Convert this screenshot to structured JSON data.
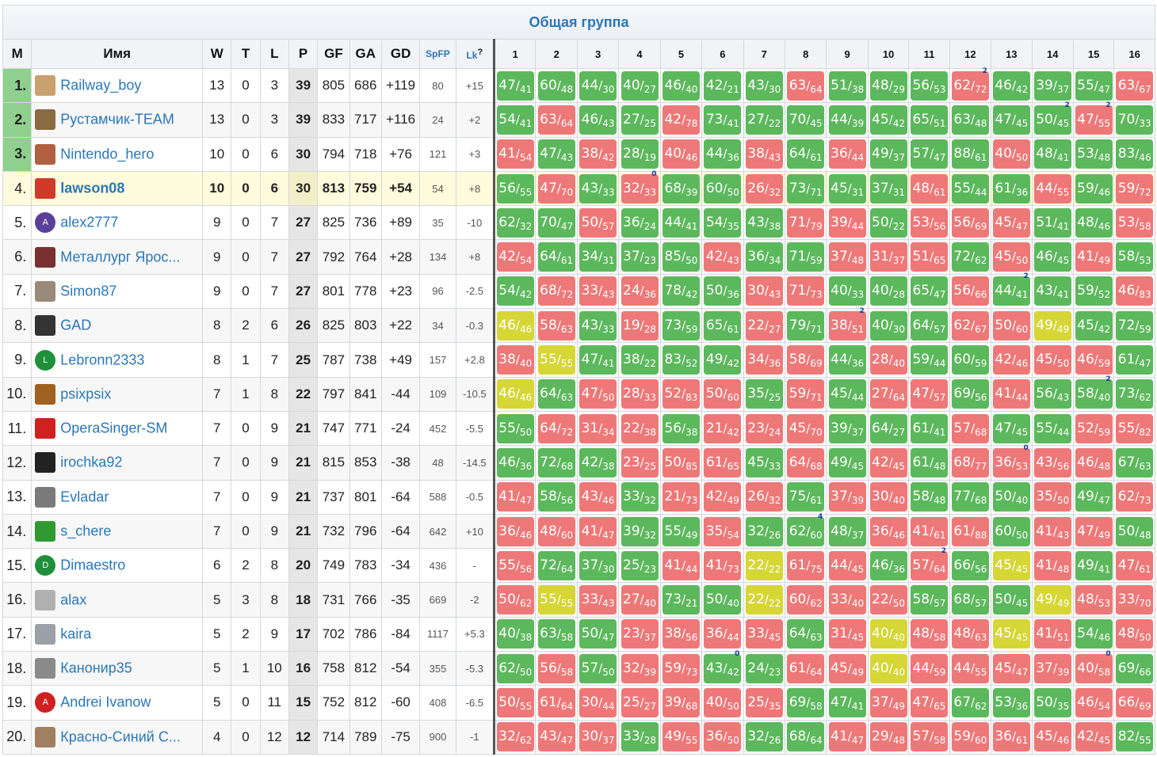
{
  "title": "Общая группа",
  "headers": {
    "m": "М",
    "name": "Имя",
    "w": "W",
    "t": "T",
    "l": "L",
    "p": "P",
    "gf": "GF",
    "ga": "GA",
    "gd": "GD",
    "spfp": "SpFP",
    "lk": "Lk",
    "lk_help": "?",
    "rounds": [
      "1",
      "2",
      "3",
      "4",
      "5",
      "6",
      "7",
      "8",
      "9",
      "10",
      "11",
      "12",
      "13",
      "14",
      "15",
      "16"
    ]
  },
  "rows": [
    {
      "rank": "1.",
      "name": "Railway_boy",
      "w": "13",
      "t": "0",
      "l": "3",
      "p": "39",
      "gf": "805",
      "ga": "686",
      "gd": "+119",
      "spfp": "80",
      "lk": "+15",
      "cells": [
        "47/41",
        "60/48",
        "44/30",
        "40/27",
        "46/40",
        "42/21",
        "43/30",
        "63/64",
        "51/38",
        "48/29",
        "56/53",
        "62/72",
        "46/42",
        "39/37",
        "55/47",
        "63/67"
      ]
    },
    {
      "rank": "2.",
      "name": "Рустамчик-TEAM",
      "w": "13",
      "t": "0",
      "l": "3",
      "p": "39",
      "gf": "833",
      "ga": "717",
      "gd": "+116",
      "spfp": "24",
      "lk": "+2",
      "cells": [
        "54/41",
        "63/64",
        "46/43",
        "27/25",
        "42/78",
        "73/41",
        "27/22",
        "70/45",
        "44/39",
        "45/42",
        "65/51",
        "63/48",
        "47/45",
        "50/45",
        "47/55",
        "70/33"
      ]
    },
    {
      "rank": "3.",
      "name": "Nintendo_hero",
      "w": "10",
      "t": "0",
      "l": "6",
      "p": "30",
      "gf": "794",
      "ga": "718",
      "gd": "+76",
      "spfp": "121",
      "lk": "+3",
      "cells": [
        "41/54",
        "47/43",
        "38/42",
        "28/19",
        "40/46",
        "44/36",
        "38/43",
        "64/61",
        "36/44",
        "49/37",
        "57/47",
        "88/61",
        "40/50",
        "48/41",
        "53/48",
        "83/46"
      ]
    },
    {
      "rank": "4.",
      "name": "lawson08",
      "w": "10",
      "t": "0",
      "l": "6",
      "p": "30",
      "gf": "813",
      "ga": "759",
      "gd": "+54",
      "spfp": "54",
      "lk": "+8",
      "cells": [
        "56/55",
        "47/70",
        "43/33",
        "32/33",
        "68/39",
        "60/50",
        "26/32",
        "73/71",
        "45/31",
        "37/31",
        "48/61",
        "55/44",
        "61/36",
        "44/55",
        "59/46",
        "59/72"
      ]
    },
    {
      "rank": "5.",
      "name": "alex2777",
      "w": "9",
      "t": "0",
      "l": "7",
      "p": "27",
      "gf": "825",
      "ga": "736",
      "gd": "+89",
      "spfp": "35",
      "lk": "-10",
      "cells": [
        "62/32",
        "70/47",
        "50/57",
        "36/24",
        "44/41",
        "54/35",
        "43/38",
        "71/79",
        "39/44",
        "50/22",
        "53/56",
        "56/69",
        "45/47",
        "51/41",
        "48/46",
        "53/58"
      ]
    },
    {
      "rank": "6.",
      "name": "Металлург Ярос...",
      "w": "9",
      "t": "0",
      "l": "7",
      "p": "27",
      "gf": "792",
      "ga": "764",
      "gd": "+28",
      "spfp": "134",
      "lk": "+8",
      "cells": [
        "42/54",
        "64/61",
        "34/31",
        "37/23",
        "85/50",
        "42/43",
        "36/34",
        "71/59",
        "37/48",
        "31/37",
        "51/65",
        "72/62",
        "45/50",
        "46/45",
        "41/49",
        "58/53"
      ]
    },
    {
      "rank": "7.",
      "name": "Simon87",
      "w": "9",
      "t": "0",
      "l": "7",
      "p": "27",
      "gf": "801",
      "ga": "778",
      "gd": "+23",
      "spfp": "96",
      "lk": "-2.5",
      "cells": [
        "54/42",
        "68/72",
        "33/43",
        "24/36",
        "78/42",
        "50/36",
        "30/43",
        "71/73",
        "40/33",
        "40/28",
        "65/47",
        "56/66",
        "44/41",
        "43/41",
        "59/52",
        "46/83"
      ]
    },
    {
      "rank": "8.",
      "name": "GAD",
      "w": "8",
      "t": "2",
      "l": "6",
      "p": "26",
      "gf": "825",
      "ga": "803",
      "gd": "+22",
      "spfp": "34",
      "lk": "-0.3",
      "cells": [
        "46/46",
        "58/63",
        "43/33",
        "19/28",
        "73/59",
        "65/61",
        "22/27",
        "79/71",
        "38/51",
        "40/30",
        "64/57",
        "62/67",
        "50/60",
        "49/49",
        "45/42",
        "72/59"
      ]
    },
    {
      "rank": "9.",
      "name": "Lebronn2333",
      "w": "8",
      "t": "1",
      "l": "7",
      "p": "25",
      "gf": "787",
      "ga": "738",
      "gd": "+49",
      "spfp": "157",
      "lk": "+2.8",
      "cells": [
        "38/40",
        "55/55",
        "47/41",
        "38/22",
        "83/52",
        "49/42",
        "34/36",
        "58/69",
        "44/36",
        "28/40",
        "59/44",
        "60/59",
        "42/46",
        "45/50",
        "46/59",
        "61/47"
      ]
    },
    {
      "rank": "10.",
      "name": "psixpsix",
      "w": "7",
      "t": "1",
      "l": "8",
      "p": "22",
      "gf": "797",
      "ga": "841",
      "gd": "-44",
      "spfp": "109",
      "lk": "-10.5",
      "cells": [
        "46/46",
        "64/63",
        "47/50",
        "28/33",
        "52/83",
        "50/60",
        "35/25",
        "59/71",
        "45/44",
        "27/64",
        "47/57",
        "69/56",
        "41/44",
        "56/43",
        "58/40",
        "73/62"
      ]
    },
    {
      "rank": "11.",
      "name": "OperaSinger-SM",
      "w": "7",
      "t": "0",
      "l": "9",
      "p": "21",
      "gf": "747",
      "ga": "771",
      "gd": "-24",
      "spfp": "452",
      "lk": "-5.5",
      "cells": [
        "55/50",
        "64/72",
        "31/34",
        "22/38",
        "56/38",
        "21/42",
        "23/24",
        "45/70",
        "39/37",
        "64/27",
        "61/41",
        "57/68",
        "47/45",
        "55/44",
        "52/59",
        "55/82"
      ]
    },
    {
      "rank": "12.",
      "name": "irochka92",
      "w": "7",
      "t": "0",
      "l": "9",
      "p": "21",
      "gf": "815",
      "ga": "853",
      "gd": "-38",
      "spfp": "48",
      "lk": "-14.5",
      "cells": [
        "46/36",
        "72/68",
        "42/38",
        "23/25",
        "50/85",
        "61/65",
        "45/33",
        "64/68",
        "49/45",
        "42/45",
        "61/48",
        "68/77",
        "36/53",
        "43/56",
        "46/48",
        "67/63"
      ]
    },
    {
      "rank": "13.",
      "name": "Evladar",
      "w": "7",
      "t": "0",
      "l": "9",
      "p": "21",
      "gf": "737",
      "ga": "801",
      "gd": "-64",
      "spfp": "588",
      "lk": "-0.5",
      "cells": [
        "41/47",
        "58/56",
        "43/46",
        "33/32",
        "21/73",
        "42/49",
        "26/32",
        "75/61",
        "37/39",
        "30/40",
        "58/48",
        "77/68",
        "50/40",
        "35/50",
        "49/47",
        "62/73"
      ]
    },
    {
      "rank": "14.",
      "name": "s_chere",
      "w": "7",
      "t": "0",
      "l": "9",
      "p": "21",
      "gf": "732",
      "ga": "796",
      "gd": "-64",
      "spfp": "642",
      "lk": "+10",
      "cells": [
        "36/46",
        "48/60",
        "41/47",
        "39/32",
        "55/49",
        "35/54",
        "32/26",
        "62/60",
        "48/37",
        "36/46",
        "41/61",
        "61/88",
        "60/50",
        "41/43",
        "47/49",
        "50/48"
      ]
    },
    {
      "rank": "15.",
      "name": "Dimaestro",
      "w": "6",
      "t": "2",
      "l": "8",
      "p": "20",
      "gf": "749",
      "ga": "783",
      "gd": "-34",
      "spfp": "436",
      "lk": "-",
      "cells": [
        "55/56",
        "72/64",
        "37/30",
        "25/23",
        "41/44",
        "41/73",
        "22/22",
        "61/75",
        "44/45",
        "46/36",
        "57/64",
        "66/56",
        "45/45",
        "41/48",
        "49/41",
        "47/61"
      ]
    },
    {
      "rank": "16.",
      "name": "alax",
      "w": "5",
      "t": "3",
      "l": "8",
      "p": "18",
      "gf": "731",
      "ga": "766",
      "gd": "-35",
      "spfp": "669",
      "lk": "-2",
      "cells": [
        "50/62",
        "55/55",
        "33/43",
        "27/40",
        "73/21",
        "50/40",
        "22/22",
        "60/62",
        "33/40",
        "22/50",
        "58/57",
        "68/57",
        "50/45",
        "49/49",
        "48/53",
        "33/70"
      ]
    },
    {
      "rank": "17.",
      "name": "kaira",
      "w": "5",
      "t": "2",
      "l": "9",
      "p": "17",
      "gf": "702",
      "ga": "786",
      "gd": "-84",
      "spfp": "1117",
      "lk": "+5.3",
      "cells": [
        "40/38",
        "63/58",
        "50/47",
        "23/37",
        "38/56",
        "36/44",
        "33/45",
        "64/63",
        "31/45",
        "40/40",
        "48/58",
        "48/63",
        "45/45",
        "41/51",
        "54/46",
        "48/50"
      ]
    },
    {
      "rank": "18.",
      "name": "Канонир35",
      "w": "5",
      "t": "1",
      "l": "10",
      "p": "16",
      "gf": "758",
      "ga": "812",
      "gd": "-54",
      "spfp": "355",
      "lk": "-5.3",
      "cells": [
        "62/50",
        "56/58",
        "57/50",
        "32/39",
        "59/73",
        "43/42",
        "24/23",
        "61/64",
        "45/49",
        "40/40",
        "44/59",
        "44/55",
        "45/47",
        "37/39",
        "40/58",
        "69/66"
      ]
    },
    {
      "rank": "19.",
      "name": "Andrei Ivanow",
      "w": "5",
      "t": "0",
      "l": "11",
      "p": "15",
      "gf": "752",
      "ga": "812",
      "gd": "-60",
      "spfp": "408",
      "lk": "-6.5",
      "cells": [
        "50/55",
        "61/64",
        "30/44",
        "25/27",
        "39/68",
        "40/50",
        "25/35",
        "69/58",
        "47/41",
        "37/49",
        "47/65",
        "67/62",
        "53/36",
        "50/35",
        "46/54",
        "66/69"
      ]
    },
    {
      "rank": "20.",
      "name": "Красно-Синий С...",
      "w": "4",
      "t": "0",
      "l": "12",
      "p": "12",
      "gf": "714",
      "ga": "789",
      "gd": "-75",
      "spfp": "900",
      "lk": "-1",
      "cells": [
        "32/62",
        "43/47",
        "30/37",
        "33/28",
        "49/55",
        "36/50",
        "32/26",
        "68/64",
        "41/47",
        "29/48",
        "57/58",
        "59/60",
        "36/61",
        "45/46",
        "42/45",
        "82/55"
      ]
    }
  ],
  "marks": {
    "0-11": "2",
    "1-13": "2",
    "1-14": "2",
    "3-3": "0",
    "6-12": "2",
    "7-8": "2",
    "9-14": "2",
    "11-12": "0",
    "13-7": "4",
    "14-10": "2",
    "17-5": "0",
    "17-14": "0"
  },
  "avatar_colors": [
    "#c9a070",
    "#8a6a40",
    "#b06040",
    "#d03a2a",
    "#5a3f9a",
    "#7a3030",
    "#9a8a7a",
    "#333333",
    "#1f8f3a",
    "#a06020",
    "#d02020",
    "#222222",
    "#7a7a7a",
    "#2f9a2f",
    "#1f8f3a",
    "#b0b0b0",
    "#9aa0a8",
    "#8a8a8a",
    "#d02020",
    "#a08060"
  ],
  "avatar_letters": [
    "",
    "",
    "",
    "",
    "A",
    "",
    "",
    "",
    "L",
    "",
    "",
    "",
    "",
    "",
    "D",
    "",
    "",
    "",
    "A",
    ""
  ],
  "colors": {
    "win": "#5cb85c",
    "loss": "#ee7878",
    "draw": "#d6d636",
    "title": "#2a77b8",
    "top_rank": "#8fd08f",
    "highlight": "#fffbdc"
  }
}
